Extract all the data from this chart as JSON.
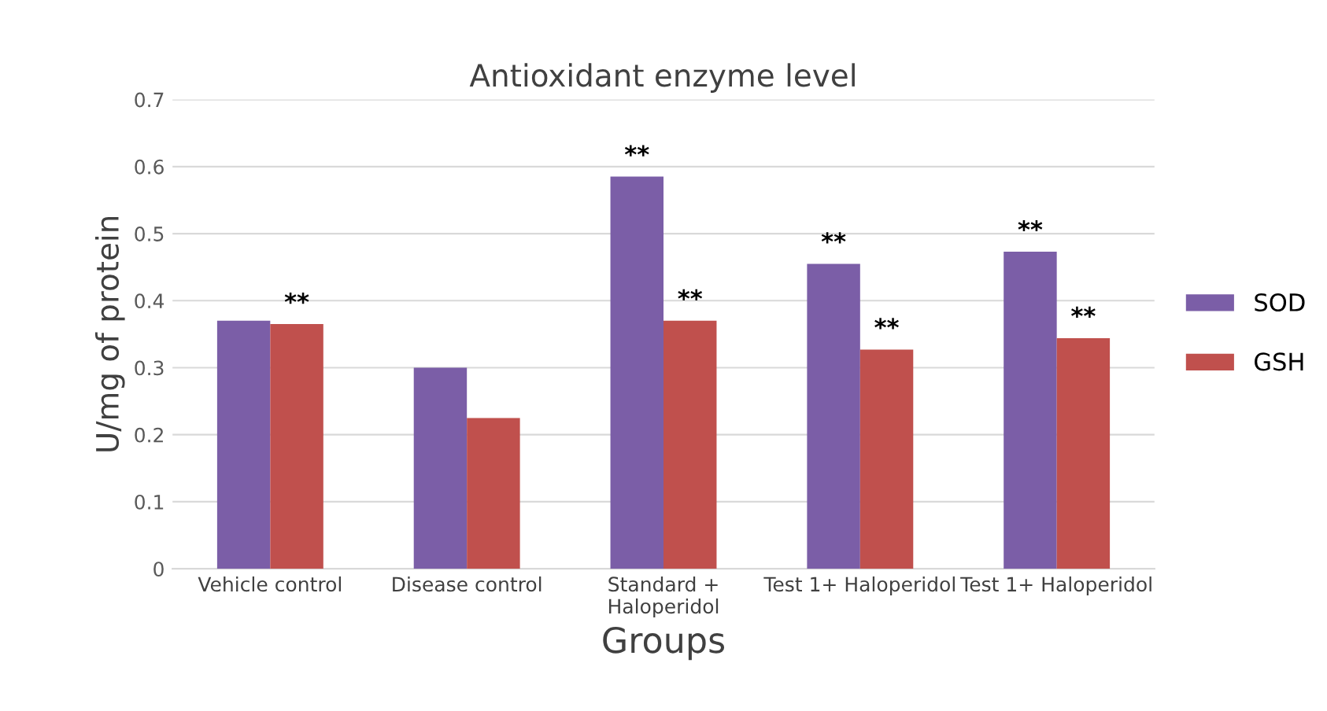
{
  "chart_data": {
    "type": "bar",
    "title": "Antioxidant enzyme level",
    "xlabel": "Groups",
    "ylabel": "U/mg of protein",
    "categories": [
      "Vehicle control",
      "Disease control",
      "Standard +\nHaloperidol",
      "Test 1+ Haloperidol",
      "Test 1+ Haloperidol"
    ],
    "series": [
      {
        "name": "SOD",
        "color": "#7b5ea7",
        "values": [
          0.37,
          0.3,
          0.585,
          0.455,
          0.473
        ],
        "value_labels": [
          null,
          null,
          "**",
          "**",
          "**"
        ]
      },
      {
        "name": "GSH",
        "color": "#c0504d",
        "values": [
          0.365,
          0.225,
          0.37,
          0.327,
          0.344
        ],
        "value_labels": [
          "**",
          null,
          "**",
          "**",
          "**"
        ]
      }
    ],
    "ylim": [
      0,
      0.7
    ],
    "yticks": [
      {
        "value": 0,
        "label": "0"
      },
      0.1,
      0.2,
      0.3,
      0.4,
      0.5,
      0.6,
      0.7
    ],
    "grid": "y",
    "legend": "right"
  }
}
